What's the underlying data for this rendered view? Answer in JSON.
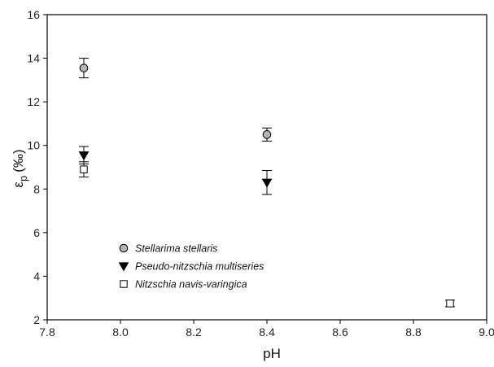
{
  "chart_data": {
    "type": "scatter",
    "title": "",
    "xlabel": "pH",
    "ylabel": "ε",
    "ylabel_subscript": "p",
    "ylabel_unit": "(‰)",
    "xlim": [
      7.8,
      9.0
    ],
    "ylim": [
      2,
      16
    ],
    "xticks": [
      "7.8",
      "8.0",
      "8.2",
      "8.4",
      "8.6",
      "8.8",
      "9.0"
    ],
    "yticks": [
      "2",
      "4",
      "6",
      "8",
      "10",
      "12",
      "14",
      "16"
    ],
    "grid": false,
    "legend_position": "lower-left",
    "series": [
      {
        "name": "Stellarima stellaris",
        "marker": "circle",
        "fill": "#b4b4b4",
        "points": [
          {
            "x": 7.9,
            "y": 13.55,
            "err": 0.45
          },
          {
            "x": 8.4,
            "y": 10.5,
            "err": 0.3
          }
        ]
      },
      {
        "name": "Pseudo-nitzschia multiseries",
        "marker": "triangle-down",
        "fill": "#000000",
        "points": [
          {
            "x": 7.9,
            "y": 9.55,
            "err": 0.4
          },
          {
            "x": 8.4,
            "y": 8.3,
            "err": 0.55
          }
        ]
      },
      {
        "name": "Nitzschia navis-varingica",
        "marker": "square-open",
        "fill": "#ffffff",
        "points": [
          {
            "x": 7.9,
            "y": 8.9,
            "err": 0.35
          },
          {
            "x": 8.9,
            "y": 2.75,
            "err": 0.15
          }
        ]
      }
    ]
  }
}
